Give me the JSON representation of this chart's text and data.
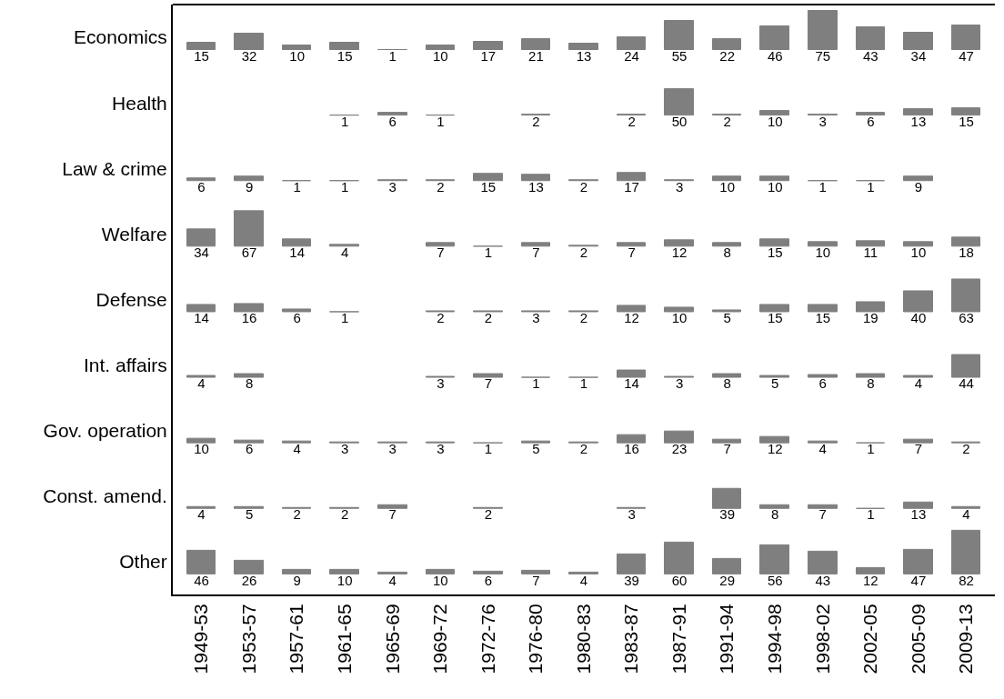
{
  "chart_data": [
    {
      "type": "bar",
      "ylabel": "Economics",
      "data_labels": true,
      "color": "#7f7f7f",
      "tick_labels": false,
      "categories": [
        "1949-53",
        "1953-57",
        "1957-61",
        "1961-65",
        "1965-69",
        "1969-72",
        "1972-76",
        "1976-80",
        "1980-83",
        "1983-87",
        "1987-91",
        "1991-94",
        "1994-98",
        "1998-02",
        "2002-05",
        "2005-09",
        "2009-13"
      ],
      "values": [
        15,
        32,
        10,
        15,
        1,
        10,
        17,
        21,
        13,
        24,
        55,
        22,
        46,
        75,
        43,
        34,
        47
      ]
    },
    {
      "type": "bar",
      "ylabel": "Health",
      "data_labels": true,
      "color": "#7f7f7f",
      "tick_labels": false,
      "categories": [
        "1949-53",
        "1953-57",
        "1957-61",
        "1961-65",
        "1965-69",
        "1969-72",
        "1972-76",
        "1976-80",
        "1980-83",
        "1983-87",
        "1987-91",
        "1991-94",
        "1994-98",
        "1998-02",
        "2002-05",
        "2005-09",
        "2009-13"
      ],
      "values": [
        null,
        null,
        null,
        1,
        6,
        1,
        null,
        2,
        null,
        2,
        50,
        2,
        10,
        3,
        6,
        13,
        15
      ]
    },
    {
      "type": "bar",
      "ylabel": "Law & crime",
      "data_labels": true,
      "color": "#7f7f7f",
      "tick_labels": false,
      "categories": [
        "1949-53",
        "1953-57",
        "1957-61",
        "1961-65",
        "1965-69",
        "1969-72",
        "1972-76",
        "1976-80",
        "1980-83",
        "1983-87",
        "1987-91",
        "1991-94",
        "1994-98",
        "1998-02",
        "2002-05",
        "2005-09",
        "2009-13"
      ],
      "values": [
        6,
        9,
        1,
        1,
        3,
        2,
        15,
        13,
        2,
        17,
        3,
        10,
        10,
        1,
        1,
        9,
        null
      ]
    },
    {
      "type": "bar",
      "ylabel": "Welfare",
      "data_labels": true,
      "color": "#7f7f7f",
      "tick_labels": false,
      "categories": [
        "1949-53",
        "1953-57",
        "1957-61",
        "1961-65",
        "1965-69",
        "1969-72",
        "1972-76",
        "1976-80",
        "1980-83",
        "1983-87",
        "1987-91",
        "1991-94",
        "1994-98",
        "1998-02",
        "2002-05",
        "2005-09",
        "2009-13"
      ],
      "values": [
        34,
        67,
        14,
        4,
        null,
        7,
        1,
        7,
        2,
        7,
        12,
        8,
        15,
        10,
        11,
        10,
        18
      ]
    },
    {
      "type": "bar",
      "ylabel": "Defense",
      "data_labels": true,
      "color": "#7f7f7f",
      "tick_labels": false,
      "categories": [
        "1949-53",
        "1953-57",
        "1957-61",
        "1961-65",
        "1965-69",
        "1969-72",
        "1972-76",
        "1976-80",
        "1980-83",
        "1983-87",
        "1987-91",
        "1991-94",
        "1994-98",
        "1998-02",
        "2002-05",
        "2005-09",
        "2009-13"
      ],
      "values": [
        14,
        16,
        6,
        1,
        null,
        2,
        2,
        3,
        2,
        12,
        10,
        5,
        15,
        15,
        19,
        40,
        63
      ]
    },
    {
      "type": "bar",
      "ylabel": "Int. affairs",
      "data_labels": true,
      "color": "#7f7f7f",
      "tick_labels": false,
      "categories": [
        "1949-53",
        "1953-57",
        "1957-61",
        "1961-65",
        "1965-69",
        "1969-72",
        "1972-76",
        "1976-80",
        "1980-83",
        "1983-87",
        "1987-91",
        "1991-94",
        "1994-98",
        "1998-02",
        "2002-05",
        "2005-09",
        "2009-13"
      ],
      "values": [
        4,
        8,
        null,
        null,
        null,
        3,
        7,
        1,
        1,
        14,
        3,
        8,
        5,
        6,
        8,
        4,
        44
      ]
    },
    {
      "type": "bar",
      "ylabel": "Gov. operation",
      "data_labels": true,
      "color": "#7f7f7f",
      "tick_labels": false,
      "categories": [
        "1949-53",
        "1953-57",
        "1957-61",
        "1961-65",
        "1965-69",
        "1969-72",
        "1972-76",
        "1976-80",
        "1980-83",
        "1983-87",
        "1987-91",
        "1991-94",
        "1994-98",
        "1998-02",
        "2002-05",
        "2005-09",
        "2009-13"
      ],
      "values": [
        10,
        6,
        4,
        3,
        3,
        3,
        1,
        5,
        2,
        16,
        23,
        7,
        12,
        4,
        1,
        7,
        2
      ]
    },
    {
      "type": "bar",
      "ylabel": "Const. amend.",
      "data_labels": true,
      "color": "#7f7f7f",
      "tick_labels": false,
      "categories": [
        "1949-53",
        "1953-57",
        "1957-61",
        "1961-65",
        "1965-69",
        "1969-72",
        "1972-76",
        "1976-80",
        "1980-83",
        "1983-87",
        "1987-91",
        "1991-94",
        "1994-98",
        "1998-02",
        "2002-05",
        "2005-09",
        "2009-13"
      ],
      "values": [
        4,
        5,
        2,
        2,
        7,
        null,
        2,
        null,
        null,
        3,
        null,
        39,
        8,
        7,
        1,
        13,
        4
      ]
    },
    {
      "type": "bar",
      "ylabel": "Other",
      "data_labels": true,
      "color": "#7f7f7f",
      "tick_labels": "x",
      "categories": [
        "1949-53",
        "1953-57",
        "1957-61",
        "1961-65",
        "1965-69",
        "1969-72",
        "1972-76",
        "1976-80",
        "1980-83",
        "1983-87",
        "1987-91",
        "1991-94",
        "1994-98",
        "1998-02",
        "2002-05",
        "2005-09",
        "2009-13"
      ],
      "values": [
        46,
        26,
        9,
        10,
        4,
        10,
        6,
        7,
        4,
        39,
        60,
        29,
        56,
        43,
        12,
        47,
        82
      ]
    }
  ]
}
